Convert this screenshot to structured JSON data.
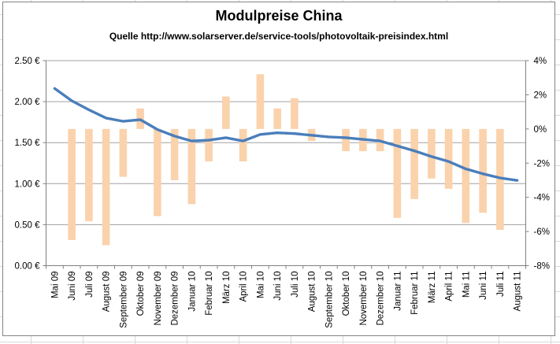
{
  "chart_data": {
    "type": "bar+line",
    "title": "Modulpreise China",
    "subtitle": "Quelle http://www.solarserver.de/service-tools/photovoltaik-preisindex.html",
    "categories": [
      "Mai 09",
      "Juni 09",
      "Juli 09",
      "August 09",
      "September 09",
      "Oktober 09",
      "November 09",
      "Dezember 09",
      "Januar 10",
      "Februar 10",
      "März 10",
      "April 10",
      "Mai 10",
      "Juni 10",
      "Juli 10",
      "August 10",
      "September 10",
      "Oktober 10",
      "November 10",
      "Dezember 10",
      "Januar 11",
      "Februar 11",
      "März 11",
      "April 11",
      "Mai 11",
      "Juni 11",
      "Juli 11",
      "August 11"
    ],
    "series": [
      {
        "id": "monthly-change-bars",
        "type": "bar",
        "axis": "right",
        "unit": "percent",
        "values": [
          null,
          -6.5,
          -5.4,
          -6.8,
          -2.8,
          1.2,
          -5.1,
          -3.0,
          -4.4,
          -1.9,
          1.9,
          -1.9,
          3.2,
          1.2,
          1.8,
          -0.7,
          0.0,
          -1.3,
          -1.3,
          -1.3,
          -5.2,
          -4.1,
          -2.9,
          -3.5,
          -5.5,
          -4.9,
          -5.9,
          null
        ]
      },
      {
        "id": "module-price-line",
        "type": "line",
        "axis": "left",
        "unit": "EUR",
        "values": [
          2.16,
          2.01,
          1.9,
          1.8,
          1.76,
          1.78,
          1.66,
          1.58,
          1.52,
          1.53,
          1.56,
          1.52,
          1.6,
          1.62,
          1.61,
          1.59,
          1.57,
          1.56,
          1.54,
          1.52,
          1.46,
          1.4,
          1.33,
          1.27,
          1.18,
          1.12,
          1.07,
          1.04
        ]
      }
    ],
    "left_axis": {
      "labels": [
        "2.50 €",
        "2.00 €",
        "1.50 €",
        "1.00 €",
        "0.50 €",
        "0.00 €"
      ],
      "min": 0,
      "max": 2.5,
      "step": 0.5
    },
    "right_axis": {
      "labels": [
        "4%",
        "2%",
        "0%",
        "-2%",
        "-4%",
        "-6%",
        "-8%"
      ],
      "min": -8,
      "max": 4,
      "step": 2
    },
    "grid": "horizontal",
    "legend": "none"
  },
  "colors": {
    "bar": "#FAD2AC",
    "line": "#4A7EBB",
    "gridline": "#A0A0A0",
    "axis": "#808080",
    "text": "#000000",
    "chart_background": "#FFFFFF"
  }
}
